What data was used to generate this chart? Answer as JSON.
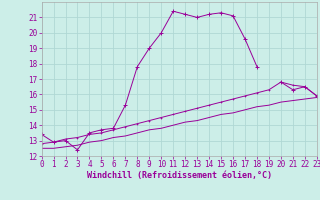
{
  "xlabel": "Windchill (Refroidissement éolien,°C)",
  "bg_color": "#cceee8",
  "line_color": "#990099",
  "grid_color": "#b0d8d4",
  "curve1_x": [
    0,
    1,
    2,
    3,
    4,
    5,
    6,
    7,
    8,
    9,
    10,
    11,
    12,
    13,
    14,
    15,
    16,
    17,
    18,
    19,
    20,
    21,
    22,
    23
  ],
  "curve1_y": [
    13.4,
    12.9,
    13.0,
    12.4,
    13.5,
    13.7,
    13.8,
    15.3,
    17.8,
    19.0,
    20.0,
    21.4,
    21.2,
    21.0,
    21.2,
    21.3,
    21.1,
    19.6,
    17.8,
    null,
    16.8,
    16.3,
    16.5,
    15.9
  ],
  "curve2_x": [
    0,
    1,
    2,
    3,
    4,
    5,
    6,
    7,
    8,
    9,
    10,
    11,
    12,
    13,
    14,
    15,
    16,
    17,
    18,
    19,
    20,
    21,
    22,
    23
  ],
  "curve2_y": [
    12.8,
    12.9,
    13.1,
    13.2,
    13.4,
    13.5,
    13.7,
    13.9,
    14.1,
    14.3,
    14.5,
    14.7,
    14.9,
    15.1,
    15.3,
    15.5,
    15.7,
    15.9,
    16.1,
    16.3,
    16.8,
    16.6,
    16.5,
    15.9
  ],
  "curve3_x": [
    0,
    1,
    2,
    3,
    4,
    5,
    6,
    7,
    8,
    9,
    10,
    11,
    12,
    13,
    14,
    15,
    16,
    17,
    18,
    19,
    20,
    21,
    22,
    23
  ],
  "curve3_y": [
    12.5,
    12.5,
    12.6,
    12.7,
    12.9,
    13.0,
    13.2,
    13.3,
    13.5,
    13.7,
    13.8,
    14.0,
    14.2,
    14.3,
    14.5,
    14.7,
    14.8,
    15.0,
    15.2,
    15.3,
    15.5,
    15.6,
    15.7,
    15.8
  ],
  "ylim": [
    12,
    22
  ],
  "xlim": [
    0,
    23
  ],
  "yticks": [
    12,
    13,
    14,
    15,
    16,
    17,
    18,
    19,
    20,
    21
  ],
  "xticks": [
    0,
    1,
    2,
    3,
    4,
    5,
    6,
    7,
    8,
    9,
    10,
    11,
    12,
    13,
    14,
    15,
    16,
    17,
    18,
    19,
    20,
    21,
    22,
    23
  ],
  "tick_color": "#990099",
  "label_fontsize": 5.5,
  "xlabel_fontsize": 6.0
}
